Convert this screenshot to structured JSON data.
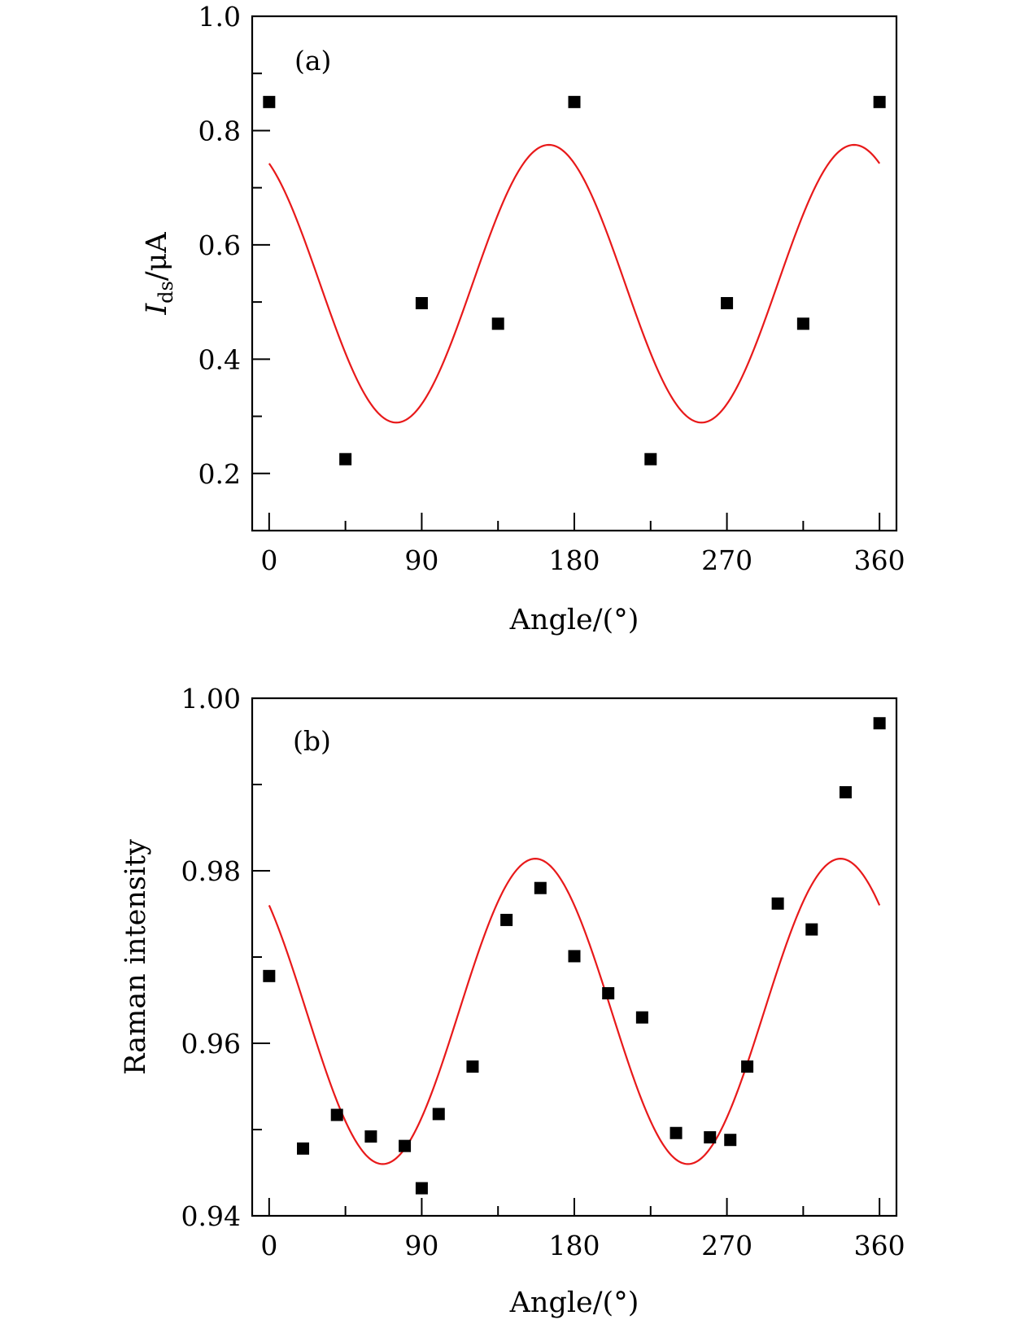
{
  "colors": {
    "marker": "#000000",
    "fit_line": "#e8191a",
    "axis": "#000000",
    "background": "#ffffff"
  },
  "chart_data": [
    {
      "type": "scatter",
      "panel_label": "(a)",
      "title": "",
      "xlabel": "Angle/(°)",
      "ylabel_main": "I",
      "ylabel_sub": "ds",
      "ylabel_rest": "/μA",
      "xlim": [
        -10,
        370
      ],
      "ylim": [
        0.1,
        1.0
      ],
      "xticks": [
        0,
        90,
        180,
        270,
        360
      ],
      "xtick_labels": [
        "0",
        "90",
        "180",
        "270",
        "360"
      ],
      "yticks": [
        0.2,
        0.4,
        0.6,
        0.8,
        1.0
      ],
      "ytick_labels": [
        "0.2",
        "0.4",
        "0.6",
        "0.8",
        "1.0"
      ],
      "y_minor_ticks": [
        0.1,
        0.3,
        0.5,
        0.7,
        0.9
      ],
      "grid": false,
      "series": [
        {
          "name": "measured",
          "style": "square-marker",
          "x": [
            0,
            45,
            90,
            135,
            180,
            225,
            270,
            315,
            360
          ],
          "y": [
            0.85,
            0.225,
            0.498,
            0.462,
            0.85,
            0.225,
            0.498,
            0.462,
            0.85
          ]
        },
        {
          "name": "fit",
          "style": "line",
          "function": "offset + amplitude * cos(2*(angle - phase))",
          "offset": 0.532,
          "amplitude": 0.243,
          "phase": 165,
          "x_range": [
            0,
            360
          ]
        }
      ]
    },
    {
      "type": "scatter",
      "panel_label": "(b)",
      "title": "",
      "xlabel": "Angle/(°)",
      "ylabel": "Raman intensity",
      "xlim": [
        -10,
        370
      ],
      "ylim": [
        0.94,
        1.0
      ],
      "xticks": [
        0,
        90,
        180,
        270,
        360
      ],
      "xtick_labels": [
        "0",
        "90",
        "180",
        "270",
        "360"
      ],
      "yticks": [
        0.94,
        0.96,
        0.98,
        1.0
      ],
      "ytick_labels": [
        "0.94",
        "0.96",
        "0.98",
        "1.00"
      ],
      "y_minor_ticks": [
        0.95,
        0.97,
        0.99
      ],
      "grid": false,
      "series": [
        {
          "name": "measured",
          "style": "square-marker",
          "x": [
            0,
            20,
            40,
            60,
            80,
            90,
            100,
            120,
            140,
            160,
            180,
            200,
            220,
            240,
            260,
            272,
            282,
            300,
            320,
            340,
            360
          ],
          "y": [
            0.9678,
            0.9478,
            0.9517,
            0.9492,
            0.9481,
            0.9432,
            0.9518,
            0.9573,
            0.9743,
            0.978,
            0.9701,
            0.9658,
            0.963,
            0.9496,
            0.9491,
            0.9488,
            0.9573,
            0.9762,
            0.9732,
            0.9891,
            0.9971
          ]
        },
        {
          "name": "fit",
          "style": "line",
          "function": "offset + amplitude * cos(2*(angle - phase))",
          "offset": 0.9637,
          "amplitude": 0.0177,
          "phase": 157,
          "x_range": [
            0,
            360
          ]
        }
      ]
    }
  ]
}
